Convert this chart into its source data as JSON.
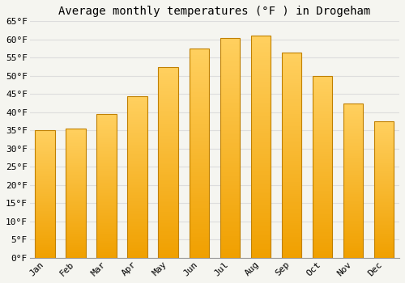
{
  "title": "Average monthly temperatures (°F ) in Drogeham",
  "months": [
    "Jan",
    "Feb",
    "Mar",
    "Apr",
    "May",
    "Jun",
    "Jul",
    "Aug",
    "Sep",
    "Oct",
    "Nov",
    "Dec"
  ],
  "values": [
    35,
    35.5,
    39.5,
    44.5,
    52.5,
    57.5,
    60.5,
    61,
    56.5,
    50,
    42.5,
    37.5
  ],
  "bar_color_top": "#FFD060",
  "bar_color_bottom": "#F0A000",
  "bar_edge_color": "#C08000",
  "background_color": "#F5F5F0",
  "plot_bg_color": "#F5F5F0",
  "grid_color": "#DDDDDD",
  "ylim": [
    0,
    65
  ],
  "yticks": [
    0,
    5,
    10,
    15,
    20,
    25,
    30,
    35,
    40,
    45,
    50,
    55,
    60,
    65
  ],
  "title_fontsize": 10,
  "tick_fontsize": 8,
  "tick_font": "monospace"
}
